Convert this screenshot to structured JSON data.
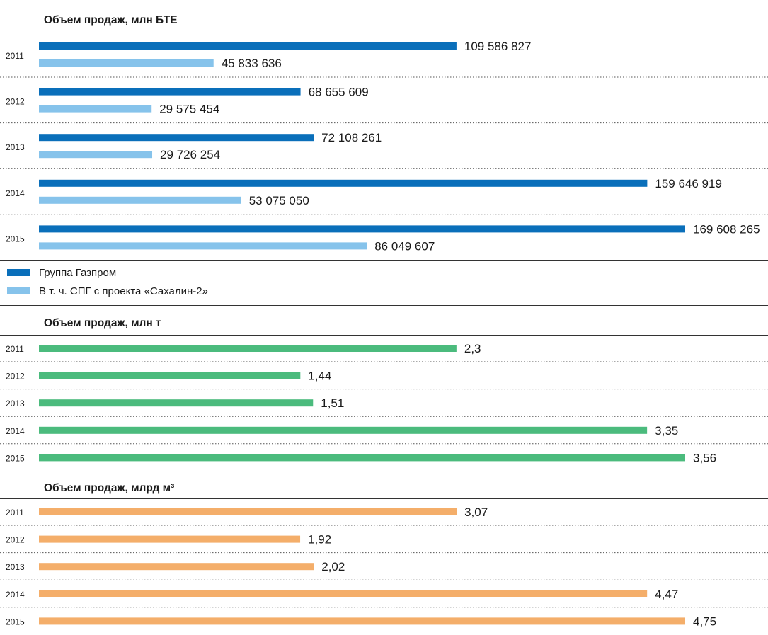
{
  "colors": {
    "gazprom": "#0a6fba",
    "sakhalin": "#86c3eb",
    "mt": "#4bbb7d",
    "bcm": "#f4ae6a"
  },
  "chart_data": [
    {
      "type": "bar",
      "orientation": "horizontal",
      "title": "Объем продаж, млн БТЕ",
      "categories": [
        "2011",
        "2012",
        "2013",
        "2014",
        "2015"
      ],
      "series": [
        {
          "name": "Группа Газпром",
          "color": "#0a6fba",
          "values": [
            109586827,
            68655609,
            72108261,
            159646919,
            169608265
          ],
          "labels": [
            "109 586 827",
            "68 655 609",
            "72 108 261",
            "159 646 919",
            "169 608 265"
          ]
        },
        {
          "name": "В т. ч. СПГ с проекта «Сахалин-2»",
          "color": "#86c3eb",
          "values": [
            45833636,
            29575454,
            29726254,
            53075050,
            86049607
          ],
          "labels": [
            "45 833 636",
            "29 575 454",
            "29 726 254",
            "53 075 050",
            "86 049 607"
          ]
        }
      ],
      "legend": "bottom-left",
      "grid": false
    },
    {
      "type": "bar",
      "orientation": "horizontal",
      "title": "Объем продаж, млн т",
      "categories": [
        "2011",
        "2012",
        "2013",
        "2014",
        "2015"
      ],
      "series": [
        {
          "color": "#4bbb7d",
          "values": [
            2.3,
            1.44,
            1.51,
            3.35,
            3.56
          ],
          "labels": [
            "2,3",
            "1,44",
            "1,51",
            "3,35",
            "3,56"
          ]
        }
      ],
      "grid": false
    },
    {
      "type": "bar",
      "orientation": "horizontal",
      "title": "Объем продаж, млрд м³",
      "categories": [
        "2011",
        "2012",
        "2013",
        "2014",
        "2015"
      ],
      "series": [
        {
          "color": "#f4ae6a",
          "values": [
            3.07,
            1.92,
            2.02,
            4.47,
            4.75
          ],
          "labels": [
            "3,07",
            "1,92",
            "2,02",
            "4,47",
            "4,75"
          ]
        }
      ],
      "grid": false
    }
  ]
}
